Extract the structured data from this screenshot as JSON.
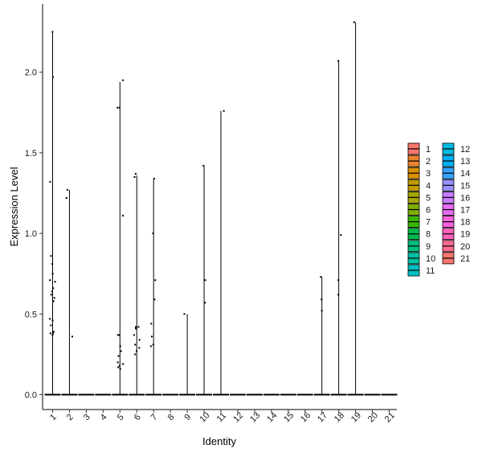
{
  "chart_data": {
    "type": "violin",
    "title": "",
    "xlabel": "Identity",
    "ylabel": "Expression Level",
    "categories": [
      "1",
      "2",
      "3",
      "4",
      "5",
      "6",
      "7",
      "8",
      "9",
      "10",
      "11",
      "12",
      "13",
      "14",
      "15",
      "16",
      "17",
      "18",
      "19",
      "20",
      "21"
    ],
    "yticks": [
      0.0,
      0.5,
      1.0,
      1.5,
      2.0
    ],
    "ytick_labels": [
      "0.0",
      "0.5",
      "1.0",
      "1.5",
      "2.0"
    ],
    "ylim": [
      -0.05,
      2.4
    ],
    "grid": false,
    "legend_position": "right",
    "legend_columns": 2,
    "colors": [
      "#F8766D",
      "#EA8331",
      "#D89000",
      "#C09B00",
      "#A3A500",
      "#7CAE00",
      "#39B600",
      "#00BB4E",
      "#00BF7D",
      "#00C1A3",
      "#00BFC4",
      "#00BAE0",
      "#00B0F6",
      "#35A2FF",
      "#9590FF",
      "#C77CFF",
      "#E76BF3",
      "#FA62DB",
      "#FF62BC",
      "#FF6C91",
      "#F8766D"
    ],
    "max_values": [
      2.25,
      1.27,
      0,
      0,
      1.94,
      1.36,
      1.34,
      0,
      0.5,
      1.42,
      1.76,
      0,
      0,
      0,
      0,
      0,
      0.73,
      2.07,
      2.31,
      0,
      0
    ],
    "points": [
      {
        "cluster": "1",
        "y": [
          2.25,
          1.97,
          1.32,
          0.86,
          0.81,
          0.75,
          0.71,
          0.7,
          0.66,
          0.64,
          0.62,
          0.6,
          0.58,
          0.47,
          0.46,
          0.43,
          0.39,
          0.38,
          0.38,
          0.37
        ]
      },
      {
        "cluster": "2",
        "y": [
          1.27,
          1.22,
          0.36
        ]
      },
      {
        "cluster": "5",
        "y": [
          1.95,
          1.78,
          1.78,
          1.11,
          0.37,
          0.37,
          0.3,
          0.27,
          0.24,
          0.2,
          0.19,
          0.18,
          0.17,
          0.16
        ]
      },
      {
        "cluster": "6",
        "y": [
          1.37,
          1.35,
          0.42,
          0.42,
          0.41,
          0.37,
          0.34,
          0.31,
          0.29,
          0.27,
          0.25
        ]
      },
      {
        "cluster": "7",
        "y": [
          1.34,
          1.0,
          0.71,
          0.59,
          0.44,
          0.36,
          0.31,
          0.3
        ]
      },
      {
        "cluster": "9",
        "y": [
          0.5
        ]
      },
      {
        "cluster": "10",
        "y": [
          1.42,
          0.71,
          0.57
        ]
      },
      {
        "cluster": "11",
        "y": [
          1.76
        ]
      },
      {
        "cluster": "17",
        "y": [
          0.73,
          0.59,
          0.52
        ]
      },
      {
        "cluster": "18",
        "y": [
          2.07,
          0.99,
          0.71,
          0.62
        ]
      },
      {
        "cluster": "19",
        "y": [
          2.31
        ]
      }
    ]
  }
}
